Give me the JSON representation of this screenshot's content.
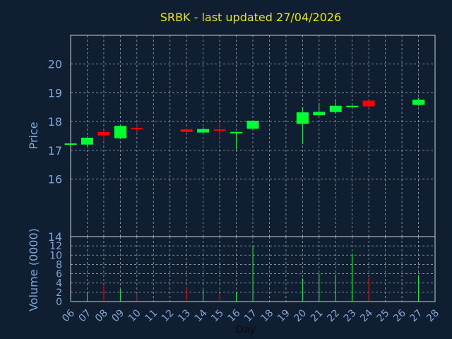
{
  "chart_data": {
    "type": "candlestick",
    "title": "SRBK - last updated 27/04/2026",
    "ylabel": "Price",
    "volume_label": "Volume (0000)",
    "xlabel": "Day",
    "ylim": [
      14,
      21
    ],
    "y_ticks": [
      "14",
      "16",
      "17",
      "18",
      "19",
      "20"
    ],
    "y_tick_values": [
      14,
      16,
      17,
      18,
      19,
      20
    ],
    "volume_ylim": [
      0,
      14
    ],
    "volume_ticks": [
      "0",
      "2",
      "4",
      "6",
      "8",
      "10",
      "12"
    ],
    "volume_tick_values": [
      0,
      2,
      4,
      6,
      8,
      10,
      12
    ],
    "x_labels": [
      "06",
      "07",
      "08",
      "09",
      "10",
      "11",
      "12",
      "13",
      "14",
      "15",
      "16",
      "17",
      "18",
      "19",
      "20",
      "21",
      "22",
      "23",
      "24",
      "25",
      "26",
      "27",
      "28"
    ],
    "grid": true,
    "colors": {
      "up": "#00ff33",
      "down": "#ff0000",
      "background": "#0f1e30",
      "title": "#e8e800",
      "axis_text": "#7fa6d6"
    },
    "candles": [
      {
        "day": "06",
        "open": 17.22,
        "close": 17.24,
        "high": 17.25,
        "low": 17.2,
        "volume": 0.3
      },
      {
        "day": "07",
        "open": 17.2,
        "close": 17.44,
        "high": 17.48,
        "low": 17.15,
        "volume": 2.0
      },
      {
        "day": "08",
        "open": 17.64,
        "close": 17.52,
        "high": 17.7,
        "low": 17.35,
        "volume": 3.4
      },
      {
        "day": "09",
        "open": 17.42,
        "close": 17.85,
        "high": 17.86,
        "low": 17.4,
        "volume": 2.6
      },
      {
        "day": "10",
        "open": 17.78,
        "close": 17.75,
        "high": 17.97,
        "low": 17.58,
        "volume": 1.8
      },
      {
        "day": "13",
        "open": 17.73,
        "close": 17.64,
        "high": 17.75,
        "low": 17.6,
        "volume": 3.2
      },
      {
        "day": "14",
        "open": 17.62,
        "close": 17.74,
        "high": 17.8,
        "low": 17.6,
        "volume": 2.6
      },
      {
        "day": "15",
        "open": 17.73,
        "close": 17.71,
        "high": 18.0,
        "low": 17.45,
        "volume": 1.7
      },
      {
        "day": "16",
        "open": 17.62,
        "close": 17.64,
        "high": 17.65,
        "low": 17.03,
        "volume": 2.0
      },
      {
        "day": "17",
        "open": 17.75,
        "close": 18.03,
        "high": 18.04,
        "low": 17.72,
        "volume": 12.0
      },
      {
        "day": "20",
        "open": 17.92,
        "close": 18.32,
        "high": 18.5,
        "low": 17.22,
        "volume": 5.0
      },
      {
        "day": "21",
        "open": 18.22,
        "close": 18.34,
        "high": 18.65,
        "low": 18.2,
        "volume": 6.0
      },
      {
        "day": "22",
        "open": 18.33,
        "close": 18.55,
        "high": 18.75,
        "low": 18.28,
        "volume": 5.8
      },
      {
        "day": "23",
        "open": 18.5,
        "close": 18.55,
        "high": 18.56,
        "low": 18.49,
        "volume": 10.3
      },
      {
        "day": "24",
        "open": 18.73,
        "close": 18.53,
        "high": 18.75,
        "low": 18.47,
        "volume": 5.2
      },
      {
        "day": "27",
        "open": 18.58,
        "close": 18.76,
        "high": 18.82,
        "low": 18.55,
        "volume": 5.5
      }
    ]
  }
}
